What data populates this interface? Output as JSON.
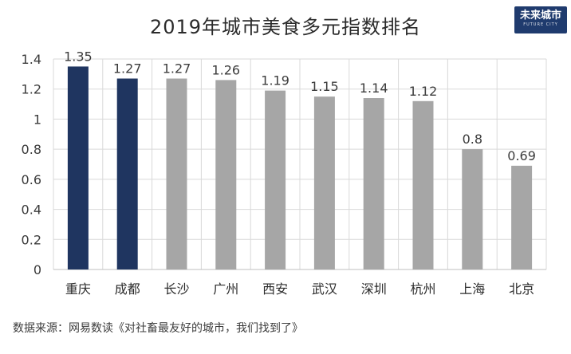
{
  "chart_data": {
    "type": "bar",
    "title": "2019年城市美食多元指数排名",
    "categories": [
      "重庆",
      "成都",
      "长沙",
      "广州",
      "西安",
      "武汉",
      "深圳",
      "杭州",
      "上海",
      "北京"
    ],
    "values": [
      1.35,
      1.27,
      1.27,
      1.26,
      1.19,
      1.15,
      1.14,
      1.12,
      0.8,
      0.69
    ],
    "value_labels": [
      "1.35",
      "1.27",
      "1.27",
      "1.26",
      "1.19",
      "1.15",
      "1.14",
      "1.12",
      "0.8",
      "0.69"
    ],
    "highlight": [
      true,
      true,
      false,
      false,
      false,
      false,
      false,
      false,
      false,
      false
    ],
    "ylim": [
      0,
      1.4
    ],
    "yticks": [
      0,
      0.2,
      0.4,
      0.6,
      0.8,
      1,
      1.2,
      1.4
    ],
    "ytick_labels": [
      "0",
      "0.2",
      "0.4",
      "0.6",
      "0.8",
      "1",
      "1.2",
      "1.4"
    ],
    "xlabel": "",
    "ylabel": "",
    "grid": true,
    "colors": {
      "highlight": "#1f3560",
      "default": "#a6a6a6",
      "grid": "#d9d9d9",
      "axis": "#bfbfbf"
    }
  },
  "logo": {
    "main": "未来城市",
    "sub": "FUTURE CITY"
  },
  "source": "数据来源：网易数读《对社畜最友好的城市，我们找到了》"
}
